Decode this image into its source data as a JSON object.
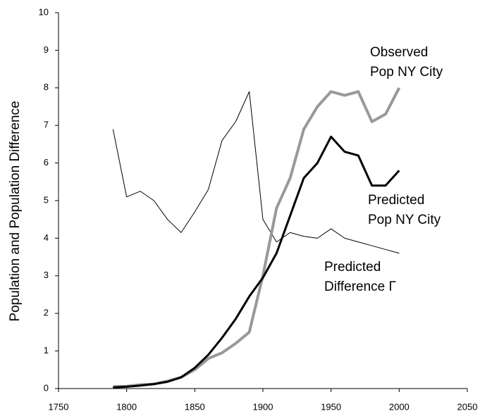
{
  "chart_data": {
    "type": "line",
    "y_label": "Population and Population Difference",
    "x": [
      1790,
      1800,
      1810,
      1820,
      1830,
      1840,
      1850,
      1860,
      1870,
      1880,
      1890,
      1900,
      1910,
      1920,
      1930,
      1940,
      1950,
      1960,
      1970,
      1980,
      1990,
      2000
    ],
    "series": [
      {
        "name": "Observed Pop NY City",
        "color": "#999999",
        "width": 4,
        "values": [
          0.05,
          0.06,
          0.1,
          0.12,
          0.2,
          0.3,
          0.5,
          0.8,
          0.95,
          1.2,
          1.5,
          3.0,
          4.8,
          5.6,
          6.9,
          7.5,
          7.9,
          7.8,
          7.9,
          7.1,
          7.3,
          8.0
        ]
      },
      {
        "name": "Predicted Pop NY City",
        "color": "#000000",
        "width": 3,
        "values": [
          0.03,
          0.05,
          0.08,
          0.12,
          0.18,
          0.3,
          0.55,
          0.9,
          1.35,
          1.85,
          2.45,
          2.95,
          3.6,
          4.6,
          5.6,
          6.0,
          6.7,
          6.3,
          6.2,
          5.4,
          5.4,
          5.8
        ]
      },
      {
        "name": "Predicted Difference Γ",
        "color": "#000000",
        "width": 1,
        "values": [
          6.9,
          5.1,
          5.25,
          5.0,
          4.5,
          4.15,
          4.7,
          5.3,
          6.6,
          7.1,
          7.9,
          4.5,
          3.9,
          4.15,
          4.05,
          4.0,
          4.25,
          4.0,
          3.9,
          3.8,
          3.7,
          3.6
        ]
      }
    ],
    "annotations": [
      {
        "lines": [
          "Observed",
          "Pop NY City"
        ]
      },
      {
        "lines": [
          "Predicted",
          "Pop NY City"
        ]
      },
      {
        "lines": [
          "Predicted",
          "Difference Γ"
        ]
      }
    ],
    "xlim": [
      1750,
      2050
    ],
    "xticks": [
      1750,
      1800,
      1850,
      1900,
      1950,
      2000,
      2050
    ],
    "ylim": [
      0,
      10
    ],
    "yticks": [
      0,
      1,
      2,
      3,
      4,
      5,
      6,
      7,
      8,
      9,
      10
    ],
    "grid": false
  }
}
